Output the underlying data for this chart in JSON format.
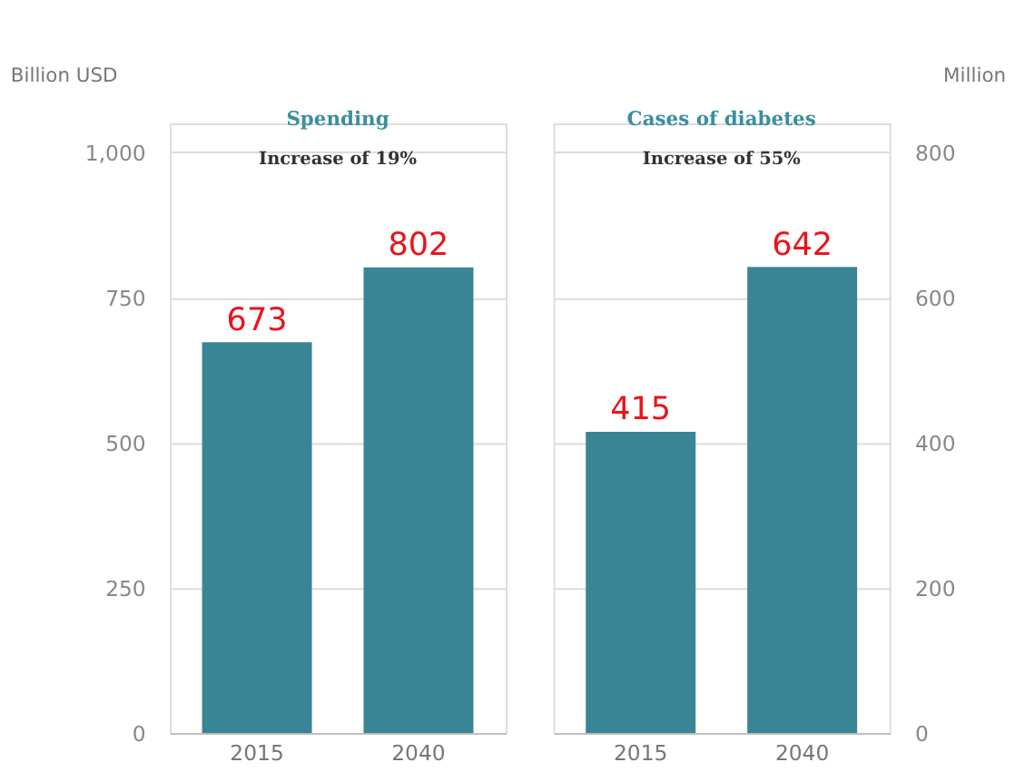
{
  "chart_data": [
    {
      "type": "bar",
      "title": "Spending",
      "ylabel": "Billion USD",
      "categories": [
        "2015",
        "2040"
      ],
      "values": [
        673,
        802
      ],
      "color": "#3a8595",
      "ylim": [
        0,
        1050
      ],
      "yticks": [
        0,
        250,
        500,
        750,
        {
          "value": 1000,
          "label": "1,000"
        }
      ],
      "grid": "y",
      "data_labels": true,
      "annotations": [
        "Increase of 19%"
      ]
    },
    {
      "type": "bar",
      "title": "Cases of diabetes",
      "y2label": "Million",
      "categories": [
        "2015",
        "2040"
      ],
      "values": [
        415,
        642
      ],
      "color": "#3a8595",
      "y2lim": [
        0,
        840
      ],
      "y2ticks": [
        0,
        200,
        400,
        600,
        800
      ],
      "grid": "y",
      "data_labels": true,
      "annotations": [
        "Increase of 55%"
      ]
    }
  ]
}
